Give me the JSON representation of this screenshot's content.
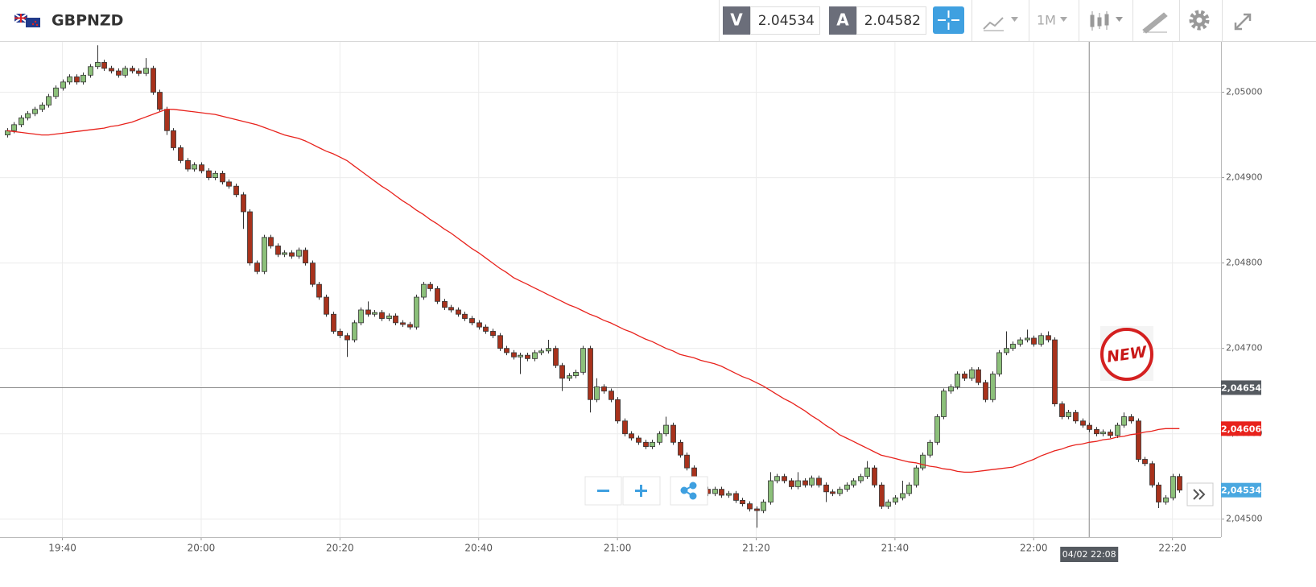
{
  "header": {
    "symbol": "GBPNZD",
    "bid_label": "V",
    "bid": 2.04534,
    "ask_label": "A",
    "ask": 2.04582,
    "timeframe": "1M"
  },
  "chart_data": {
    "type": "candlestick",
    "x": [
      "19:32",
      "19:33",
      "19:34",
      "19:35",
      "19:36",
      "19:37",
      "19:38",
      "19:39",
      "19:40",
      "19:41",
      "19:42",
      "19:43",
      "19:44",
      "19:45",
      "19:46",
      "19:47",
      "19:48",
      "19:49",
      "19:50",
      "19:51",
      "19:52",
      "19:53",
      "19:54",
      "19:55",
      "19:56",
      "19:57",
      "19:58",
      "19:59",
      "20:00",
      "20:01",
      "20:02",
      "20:03",
      "20:04",
      "20:05",
      "20:06",
      "20:07",
      "20:08",
      "20:09",
      "20:10",
      "20:11",
      "20:12",
      "20:13",
      "20:14",
      "20:15",
      "20:16",
      "20:17",
      "20:18",
      "20:19",
      "20:20",
      "20:21",
      "20:22",
      "20:23",
      "20:24",
      "20:25",
      "20:26",
      "20:27",
      "20:28",
      "20:29",
      "20:30",
      "20:31",
      "20:32",
      "20:33",
      "20:34",
      "20:35",
      "20:36",
      "20:37",
      "20:38",
      "20:39",
      "20:40",
      "20:41",
      "20:42",
      "20:43",
      "20:44",
      "20:45",
      "20:46",
      "20:47",
      "20:48",
      "20:49",
      "20:50",
      "20:51",
      "20:52",
      "20:53",
      "20:54",
      "20:55",
      "20:56",
      "20:57",
      "20:58",
      "20:59",
      "21:00",
      "21:01",
      "21:02",
      "21:03",
      "21:04",
      "21:05",
      "21:06",
      "21:07",
      "21:08",
      "21:09",
      "21:10",
      "21:11",
      "21:12",
      "21:13",
      "21:14",
      "21:15",
      "21:16",
      "21:17",
      "21:18",
      "21:19",
      "21:20",
      "21:21",
      "21:22",
      "21:23",
      "21:24",
      "21:25",
      "21:26",
      "21:27",
      "21:28",
      "21:29",
      "21:30",
      "21:31",
      "21:32",
      "21:33",
      "21:34",
      "21:35",
      "21:36",
      "21:37",
      "21:38",
      "21:39",
      "21:40",
      "21:41",
      "21:42",
      "21:43",
      "21:44",
      "21:45",
      "21:46",
      "21:47",
      "21:48",
      "21:49",
      "21:50",
      "21:51",
      "21:52",
      "21:53",
      "21:54",
      "21:55",
      "21:56",
      "21:57",
      "21:58",
      "21:59",
      "22:00",
      "22:01",
      "22:02",
      "22:03",
      "22:04",
      "22:05",
      "22:06",
      "22:07",
      "22:08",
      "22:09",
      "22:10",
      "22:11",
      "22:12",
      "22:13",
      "22:14",
      "22:15",
      "22:16",
      "22:17",
      "22:18",
      "22:19",
      "22:20",
      "22:21"
    ],
    "open": [
      2.0495,
      2.04955,
      2.04962,
      2.0497,
      2.04975,
      2.0498,
      2.04985,
      2.04995,
      2.05005,
      2.05012,
      2.05018,
      2.05012,
      2.0502,
      2.0503,
      2.05035,
      2.05028,
      2.05025,
      2.0502,
      2.05028,
      2.05025,
      2.05022,
      2.05028,
      2.05,
      2.0498,
      2.04955,
      2.04935,
      2.0492,
      2.0491,
      2.04915,
      2.04908,
      2.049,
      2.04905,
      2.04895,
      2.0489,
      2.0488,
      2.0486,
      2.048,
      2.0479,
      2.0483,
      2.0482,
      2.0481,
      2.04812,
      2.04808,
      2.04815,
      2.048,
      2.04775,
      2.0476,
      2.0474,
      2.0472,
      2.04715,
      2.0471,
      2.0473,
      2.04745,
      2.0474,
      2.04742,
      2.04735,
      2.04738,
      2.0473,
      2.04728,
      2.04725,
      2.0476,
      2.04775,
      2.0477,
      2.04755,
      2.04748,
      2.04745,
      2.0474,
      2.04735,
      2.0473,
      2.04725,
      2.0472,
      2.04715,
      2.047,
      2.04695,
      2.0469,
      2.04692,
      2.04688,
      2.04695,
      2.04697,
      2.047,
      2.0468,
      2.04665,
      2.04668,
      2.04672,
      2.047,
      2.0464,
      2.04655,
      2.0465,
      2.0464,
      2.04615,
      2.046,
      2.04595,
      2.0459,
      2.04585,
      2.0459,
      2.046,
      2.0461,
      2.0459,
      2.04575,
      2.0456,
      2.04545,
      2.04535,
      2.0453,
      2.04535,
      2.04528,
      2.0453,
      2.04522,
      2.04518,
      2.04512,
      2.0451,
      2.0452,
      2.04545,
      2.0455,
      2.04545,
      2.04538,
      2.04545,
      2.0454,
      2.04548,
      2.0454,
      2.04532,
      2.0453,
      2.04535,
      2.0454,
      2.04545,
      2.0455,
      2.0456,
      2.0454,
      2.04515,
      2.0452,
      2.04525,
      2.0453,
      2.0454,
      2.0456,
      2.04575,
      2.0459,
      2.0462,
      2.0465,
      2.04655,
      2.0467,
      2.04665,
      2.04675,
      2.0466,
      2.0464,
      2.0467,
      2.04695,
      2.047,
      2.04705,
      2.0471,
      2.04712,
      2.04705,
      2.04715,
      2.0471,
      2.04635,
      2.0462,
      2.04625,
      2.04615,
      2.0461,
      2.04605,
      2.046,
      2.04602,
      2.04598,
      2.0461,
      2.0462,
      2.04615,
      2.0457,
      2.04565,
      2.0454,
      2.0452,
      2.04525,
      2.0455
    ],
    "high": [
      2.04958,
      2.04965,
      2.04973,
      2.04978,
      2.04983,
      2.04988,
      2.04998,
      2.05008,
      2.05015,
      2.05021,
      2.05021,
      2.05023,
      2.05033,
      2.05055,
      2.05038,
      2.05031,
      2.05028,
      2.05031,
      2.05031,
      2.05028,
      2.0504,
      2.05031,
      2.05003,
      2.04983,
      2.04958,
      2.04938,
      2.04923,
      2.04918,
      2.04918,
      2.04911,
      2.04908,
      2.04908,
      2.04898,
      2.04893,
      2.04883,
      2.04863,
      2.04803,
      2.04833,
      2.04833,
      2.04823,
      2.04815,
      2.04815,
      2.04818,
      2.04818,
      2.04803,
      2.04778,
      2.04763,
      2.04743,
      2.04723,
      2.04718,
      2.04733,
      2.04748,
      2.04755,
      2.04745,
      2.04745,
      2.04741,
      2.04741,
      2.04733,
      2.04731,
      2.04763,
      2.04778,
      2.04778,
      2.04773,
      2.04758,
      2.04751,
      2.04748,
      2.04743,
      2.04738,
      2.04733,
      2.04728,
      2.04723,
      2.04718,
      2.04703,
      2.04698,
      2.04695,
      2.04695,
      2.04698,
      2.047,
      2.0471,
      2.04703,
      2.04683,
      2.04671,
      2.04675,
      2.04703,
      2.04703,
      2.04665,
      2.04658,
      2.04653,
      2.04643,
      2.04618,
      2.04603,
      2.04598,
      2.04593,
      2.04593,
      2.04603,
      2.0462,
      2.04613,
      2.04593,
      2.04578,
      2.04563,
      2.04548,
      2.04538,
      2.04538,
      2.04538,
      2.04533,
      2.04533,
      2.04525,
      2.04521,
      2.04515,
      2.04523,
      2.04555,
      2.04553,
      2.04553,
      2.04548,
      2.04555,
      2.04548,
      2.04551,
      2.04551,
      2.04543,
      2.04535,
      2.04538,
      2.04543,
      2.04548,
      2.04553,
      2.04568,
      2.04563,
      2.04543,
      2.04523,
      2.04528,
      2.04545,
      2.04543,
      2.04563,
      2.04578,
      2.04593,
      2.04623,
      2.04653,
      2.04658,
      2.04673,
      2.04673,
      2.04678,
      2.04678,
      2.04663,
      2.04673,
      2.04698,
      2.0472,
      2.04708,
      2.04713,
      2.04722,
      2.04715,
      2.04718,
      2.0472,
      2.04713,
      2.04638,
      2.04628,
      2.04628,
      2.04618,
      2.04613,
      2.04608,
      2.04605,
      2.04605,
      2.04613,
      2.04625,
      2.04623,
      2.04618,
      2.04573,
      2.04568,
      2.04543,
      2.04528,
      2.04553,
      2.04553
    ],
    "low": [
      2.04947,
      2.04952,
      2.04959,
      2.04967,
      2.04972,
      2.04977,
      2.04982,
      2.04992,
      2.05002,
      2.05009,
      2.05009,
      2.05009,
      2.05017,
      2.05027,
      2.05025,
      2.05022,
      2.05017,
      2.05017,
      2.05022,
      2.05019,
      2.05019,
      2.04997,
      2.04977,
      2.0495,
      2.04932,
      2.04917,
      2.04907,
      2.04907,
      2.04905,
      2.04897,
      2.04897,
      2.04892,
      2.04887,
      2.04877,
      2.0484,
      2.04797,
      2.04787,
      2.04787,
      2.04817,
      2.04807,
      2.04807,
      2.04805,
      2.04805,
      2.04797,
      2.04772,
      2.04757,
      2.04737,
      2.04717,
      2.04712,
      2.0469,
      2.04707,
      2.04727,
      2.04737,
      2.04737,
      2.04732,
      2.04732,
      2.04727,
      2.04725,
      2.04722,
      2.04722,
      2.04757,
      2.04767,
      2.04752,
      2.04745,
      2.04742,
      2.04737,
      2.04732,
      2.04727,
      2.04722,
      2.04717,
      2.04712,
      2.04697,
      2.04692,
      2.04687,
      2.0467,
      2.04685,
      2.04685,
      2.04692,
      2.04694,
      2.04677,
      2.0465,
      2.04662,
      2.04665,
      2.04669,
      2.04625,
      2.04637,
      2.04647,
      2.04637,
      2.04612,
      2.04597,
      2.04592,
      2.04587,
      2.04582,
      2.04582,
      2.04587,
      2.04597,
      2.04587,
      2.04572,
      2.04557,
      2.04542,
      2.04532,
      2.04527,
      2.04527,
      2.04525,
      2.04525,
      2.04519,
      2.04515,
      2.04509,
      2.0449,
      2.04507,
      2.04517,
      2.04542,
      2.04542,
      2.04535,
      2.04535,
      2.04537,
      2.04537,
      2.04537,
      2.0452,
      2.04527,
      2.04527,
      2.04532,
      2.04537,
      2.04542,
      2.04547,
      2.04537,
      2.04512,
      2.04512,
      2.04517,
      2.04522,
      2.04527,
      2.04537,
      2.04557,
      2.04572,
      2.04587,
      2.04617,
      2.04647,
      2.04652,
      2.04662,
      2.04662,
      2.04657,
      2.04637,
      2.04637,
      2.04667,
      2.04692,
      2.04697,
      2.04702,
      2.04707,
      2.04702,
      2.04702,
      2.04707,
      2.04632,
      2.04617,
      2.04617,
      2.04612,
      2.04607,
      2.04602,
      2.04597,
      2.04597,
      2.04595,
      2.04595,
      2.04607,
      2.04612,
      2.04567,
      2.04562,
      2.04537,
      2.04513,
      2.04517,
      2.04522,
      2.04531
    ],
    "close": [
      2.04955,
      2.04962,
      2.0497,
      2.04975,
      2.0498,
      2.04985,
      2.04995,
      2.05005,
      2.05012,
      2.05018,
      2.05012,
      2.0502,
      2.0503,
      2.05035,
      2.05028,
      2.05025,
      2.0502,
      2.05028,
      2.05025,
      2.05022,
      2.05028,
      2.05,
      2.0498,
      2.04955,
      2.04935,
      2.0492,
      2.0491,
      2.04915,
      2.04908,
      2.049,
      2.04905,
      2.04895,
      2.0489,
      2.0488,
      2.0486,
      2.048,
      2.0479,
      2.0483,
      2.0482,
      2.0481,
      2.04812,
      2.04808,
      2.04815,
      2.048,
      2.04775,
      2.0476,
      2.0474,
      2.0472,
      2.04715,
      2.0471,
      2.0473,
      2.04745,
      2.0474,
      2.04742,
      2.04735,
      2.04738,
      2.0473,
      2.04728,
      2.04725,
      2.0476,
      2.04775,
      2.0477,
      2.04755,
      2.04748,
      2.04745,
      2.0474,
      2.04735,
      2.0473,
      2.04725,
      2.0472,
      2.04715,
      2.047,
      2.04695,
      2.0469,
      2.04692,
      2.04688,
      2.04695,
      2.04697,
      2.047,
      2.0468,
      2.04665,
      2.04668,
      2.04672,
      2.047,
      2.0464,
      2.04655,
      2.0465,
      2.0464,
      2.04615,
      2.046,
      2.04595,
      2.0459,
      2.04585,
      2.0459,
      2.046,
      2.0461,
      2.0459,
      2.04575,
      2.0456,
      2.04545,
      2.04535,
      2.0453,
      2.04535,
      2.04528,
      2.0453,
      2.04522,
      2.04518,
      2.04512,
      2.0451,
      2.0452,
      2.04545,
      2.0455,
      2.04545,
      2.04538,
      2.04545,
      2.0454,
      2.04548,
      2.0454,
      2.04532,
      2.0453,
      2.04535,
      2.0454,
      2.04545,
      2.0455,
      2.0456,
      2.0454,
      2.04515,
      2.0452,
      2.04525,
      2.0453,
      2.0454,
      2.0456,
      2.04575,
      2.0459,
      2.0462,
      2.0465,
      2.04655,
      2.0467,
      2.04665,
      2.04675,
      2.0466,
      2.0464,
      2.0467,
      2.04695,
      2.047,
      2.04705,
      2.0471,
      2.04712,
      2.04705,
      2.04715,
      2.0471,
      2.04635,
      2.0462,
      2.04625,
      2.04615,
      2.0461,
      2.04605,
      2.046,
      2.04602,
      2.04598,
      2.0461,
      2.0462,
      2.04615,
      2.0457,
      2.04565,
      2.0454,
      2.0452,
      2.04525,
      2.0455,
      2.04534
    ],
    "colors": {
      "up": "#8cc07a",
      "down": "#a8321c"
    },
    "moving_average": {
      "color": "#e8221c",
      "values": [
        2.04955,
        2.04954,
        2.04953,
        2.04952,
        2.04951,
        2.0495,
        2.0495,
        2.04951,
        2.04952,
        2.04953,
        2.04954,
        2.04955,
        2.04956,
        2.04957,
        2.04958,
        2.0496,
        2.04961,
        2.04963,
        2.04965,
        2.04968,
        2.04971,
        2.04974,
        2.04977,
        2.0498,
        2.0498,
        2.04979,
        2.04978,
        2.04977,
        2.04976,
        2.04975,
        2.04974,
        2.04972,
        2.0497,
        2.04968,
        2.04966,
        2.04964,
        2.04962,
        2.04959,
        2.04956,
        2.04953,
        2.0495,
        2.04948,
        2.04946,
        2.04943,
        2.04939,
        2.04935,
        2.04931,
        2.04928,
        2.04924,
        2.0492,
        2.04914,
        2.04908,
        2.04902,
        2.04896,
        2.0489,
        2.04885,
        2.04879,
        2.04873,
        2.04868,
        2.04862,
        2.04857,
        2.04851,
        2.04846,
        2.0484,
        2.04835,
        2.04829,
        2.04823,
        2.04817,
        2.04812,
        2.04806,
        2.048,
        2.04794,
        2.04789,
        2.04783,
        2.04779,
        2.04775,
        2.04771,
        2.04767,
        2.04763,
        2.04759,
        2.04755,
        2.04751,
        2.04748,
        2.04744,
        2.0474,
        2.04737,
        2.04733,
        2.0473,
        2.04726,
        2.04722,
        2.04719,
        2.04715,
        2.04711,
        2.04708,
        2.04704,
        2.047,
        2.04697,
        2.04693,
        2.04691,
        2.04689,
        2.04686,
        2.04684,
        2.04682,
        2.04679,
        2.04675,
        2.04671,
        2.04667,
        2.04664,
        2.0466,
        2.04656,
        2.04651,
        2.04646,
        2.04641,
        2.04637,
        2.04632,
        2.04627,
        2.04621,
        2.04616,
        2.0461,
        2.04605,
        2.04599,
        2.04595,
        2.04591,
        2.04587,
        2.04583,
        2.04579,
        2.04575,
        2.04573,
        2.04571,
        2.04569,
        2.04567,
        2.04566,
        2.04564,
        2.04562,
        2.04561,
        2.04559,
        2.04558,
        2.04556,
        2.04555,
        2.04555,
        2.04556,
        2.04557,
        2.04558,
        2.04559,
        2.0456,
        2.04561,
        2.04564,
        2.04567,
        2.0457,
        2.04574,
        2.04577,
        2.0458,
        2.04582,
        2.04585,
        2.04587,
        2.04588,
        2.0459,
        2.04591,
        2.04593,
        2.04594,
        2.04596,
        2.04597,
        2.04599,
        2.046,
        2.04602,
        2.04603,
        2.04605,
        2.04606,
        2.04606,
        2.04606
      ]
    },
    "xlim": [
      "19:31",
      "22:27"
    ],
    "xticks": [
      "19:40",
      "20:00",
      "20:20",
      "20:40",
      "21:00",
      "21:20",
      "21:40",
      "22:00",
      "22:20"
    ],
    "ylim": [
      2.04479,
      2.05059
    ],
    "yticks": [
      {
        "value": 2.045,
        "label": "2,04500"
      },
      {
        "value": 2.046,
        "label": "2,04600"
      },
      {
        "value": 2.047,
        "label": "2,04700"
      },
      {
        "value": 2.048,
        "label": "2,04800"
      },
      {
        "value": 2.049,
        "label": "2,04900"
      },
      {
        "value": 2.05,
        "label": "2,05000"
      }
    ],
    "grid": true,
    "crosshair": {
      "x": {
        "value": "22:08",
        "label": "04/02 22:08"
      },
      "y": {
        "value": 2.04654,
        "label": "2,04654"
      }
    },
    "price_tags": [
      {
        "value": 2.04606,
        "label": "2,04606",
        "color": "#e8221c"
      },
      {
        "value": 2.04534,
        "label": "2,04534",
        "color": "#4aa8e0"
      }
    ],
    "annotation": "NEW"
  }
}
